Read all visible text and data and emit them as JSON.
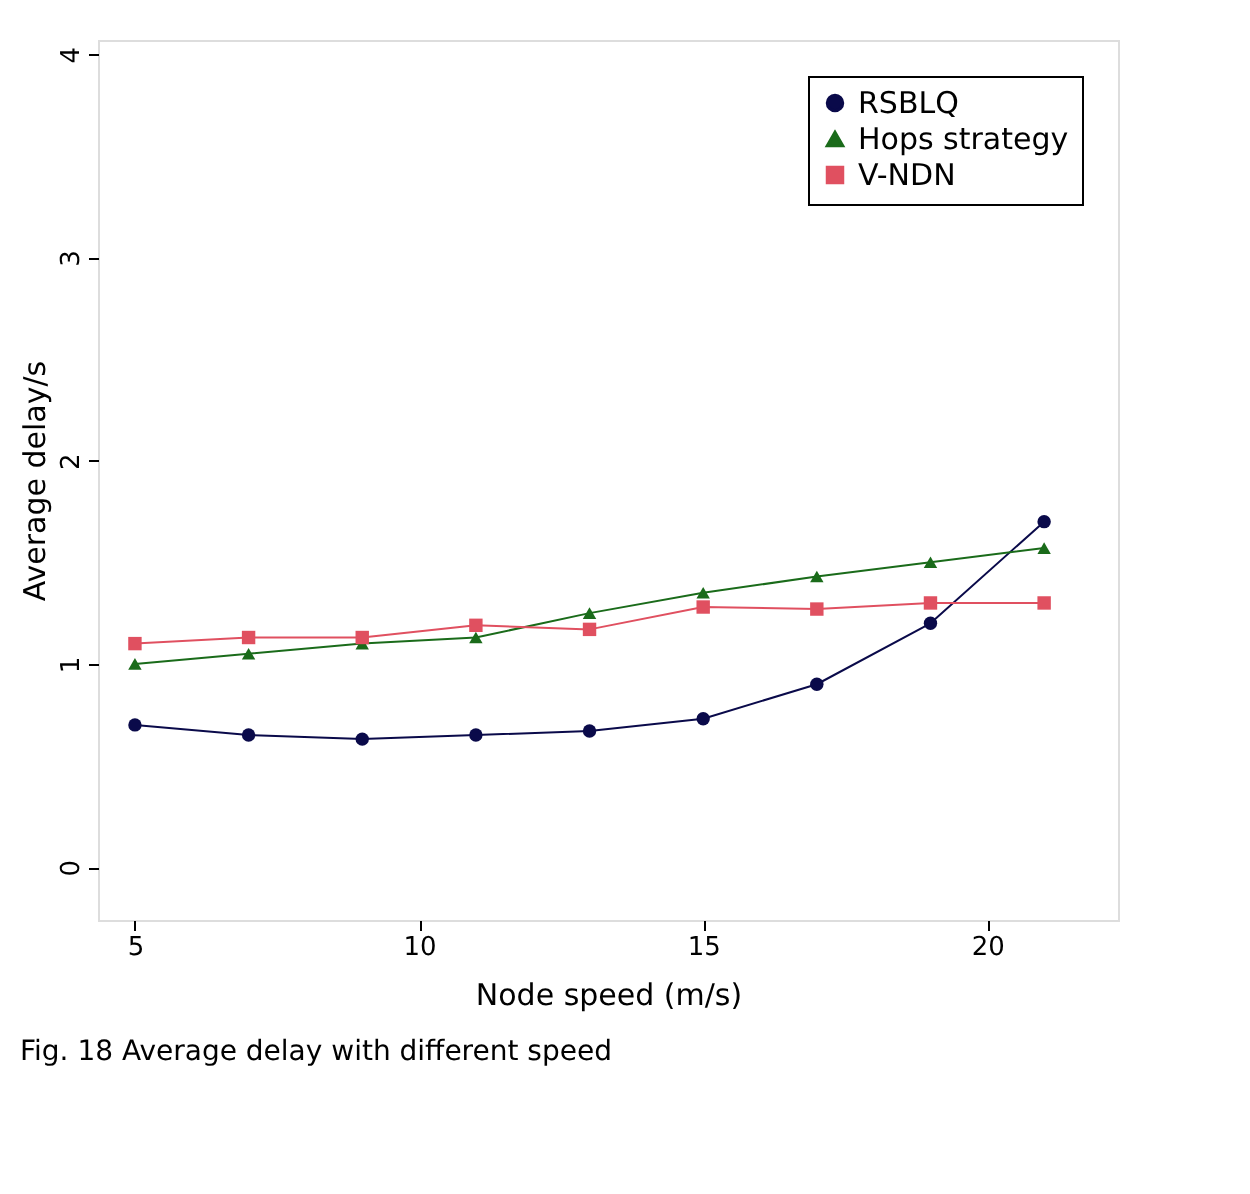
{
  "chart_data": {
    "type": "line",
    "xlabel": "Node speed (m/s)",
    "ylabel": "Average delay/s",
    "annotations": [
      "Fig. 18 Average delay with different speed"
    ],
    "x": [
      5,
      7,
      9,
      11,
      13,
      15,
      17,
      19,
      21
    ],
    "series": [
      {
        "name": "RSBLQ",
        "color": "#0a0a4a",
        "marker": "circle",
        "values": [
          0.7,
          0.65,
          0.63,
          0.65,
          0.67,
          0.73,
          0.9,
          1.2,
          1.7
        ]
      },
      {
        "name": "Hops strategy",
        "color": "#1a6b1a",
        "marker": "triangle",
        "values": [
          1.0,
          1.05,
          1.1,
          1.13,
          1.25,
          1.35,
          1.43,
          1.5,
          1.57
        ]
      },
      {
        "name": "V-NDN",
        "color": "#e05060",
        "marker": "square",
        "values": [
          1.1,
          1.13,
          1.13,
          1.19,
          1.17,
          1.28,
          1.27,
          1.3,
          1.3
        ]
      }
    ],
    "xlim": [
      4.35,
      22.3
    ],
    "ylim": [
      -0.26,
      4.07
    ],
    "xticks": [
      5,
      10,
      15,
      20
    ],
    "yticks": [
      0,
      1,
      2,
      3,
      4
    ],
    "grid": false,
    "legend": "top right",
    "line_style": "solid"
  }
}
